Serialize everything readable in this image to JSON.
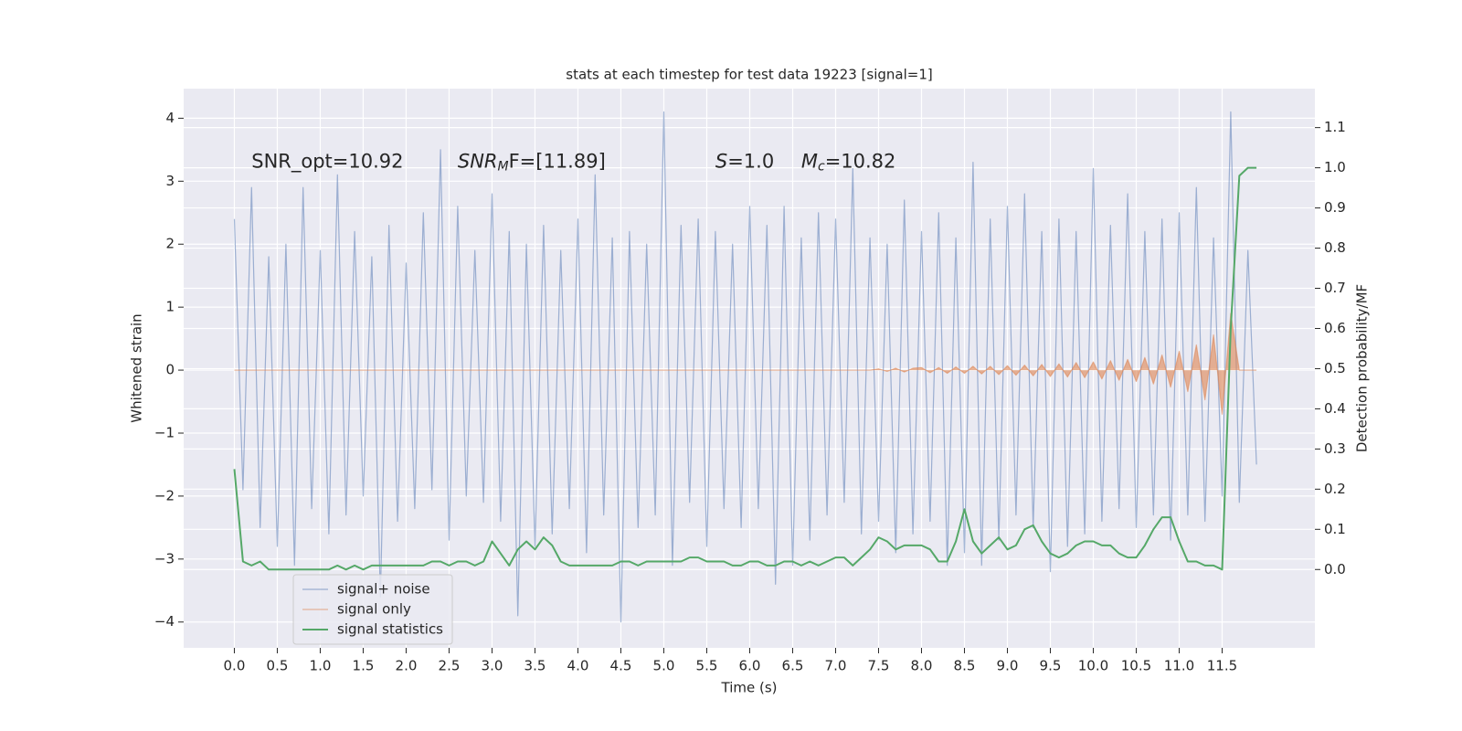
{
  "chart_data": {
    "type": "line",
    "title": "stats at each timestep for test data 19223 [signal=1]",
    "xlabel": "Time (s)",
    "ylabel": "Whitened strain",
    "y2label": "Detection probability/MF",
    "annotations": [
      {
        "text": "SNR_opt=10.92"
      },
      {
        "symbol": "SNR",
        "sub": "M",
        "rest": "F=[11.89]"
      },
      {
        "symbol": "S",
        "rest": "=1.0"
      },
      {
        "symbol": "M",
        "sub": "c",
        "rest": "=10.82"
      }
    ],
    "xlim": [
      -0.59,
      12.58
    ],
    "ylim": [
      -4.41,
      4.47
    ],
    "y2lim": [
      -0.195,
      1.197
    ],
    "xticks": [
      {
        "value": 0,
        "label": "0.0"
      },
      0.5,
      {
        "value": 1,
        "label": "1.0"
      },
      1.5,
      {
        "value": 2,
        "label": "2.0"
      },
      2.5,
      {
        "value": 3,
        "label": "3.0"
      },
      3.5,
      {
        "value": 4,
        "label": "4.0"
      },
      4.5,
      {
        "value": 5,
        "label": "5.0"
      },
      5.5,
      {
        "value": 6,
        "label": "6.0"
      },
      6.5,
      {
        "value": 7,
        "label": "7.0"
      },
      7.5,
      {
        "value": 8,
        "label": "8.0"
      },
      8.5,
      {
        "value": 9,
        "label": "9.0"
      },
      9.5,
      {
        "value": 10,
        "label": "10.0"
      },
      10.5,
      {
        "value": 11,
        "label": "11.0"
      },
      11.5
    ],
    "yticks": [
      {
        "value": -4,
        "label": "−4"
      },
      {
        "value": -3,
        "label": "−3"
      },
      {
        "value": -2,
        "label": "−2"
      },
      {
        "value": -1,
        "label": "−1"
      },
      0,
      1,
      2,
      3,
      4
    ],
    "y2ticks": [
      {
        "value": 0,
        "label": "0.0"
      },
      0.1,
      0.2,
      0.3,
      0.4,
      0.5,
      0.6,
      0.7,
      0.8,
      0.9,
      {
        "value": 1,
        "label": "1.0"
      },
      1.1
    ],
    "grid": true,
    "legend": "lower left",
    "x": [
      0,
      0.1,
      0.2,
      0.3,
      0.4,
      0.5,
      0.6,
      0.7,
      0.8,
      0.9,
      1,
      1.1,
      1.2,
      1.3,
      1.4,
      1.5,
      1.6,
      1.7,
      1.8,
      1.9,
      2,
      2.1,
      2.2,
      2.3,
      2.4,
      2.5,
      2.6,
      2.7,
      2.8,
      2.9,
      3,
      3.1,
      3.2,
      3.3,
      3.4,
      3.5,
      3.6,
      3.7,
      3.8,
      3.9,
      4,
      4.1,
      4.2,
      4.3,
      4.4,
      4.5,
      4.6,
      4.7,
      4.8,
      4.9,
      5,
      5.1,
      5.2,
      5.3,
      5.4,
      5.5,
      5.6,
      5.7,
      5.8,
      5.9,
      6,
      6.1,
      6.2,
      6.3,
      6.4,
      6.5,
      6.6,
      6.7,
      6.8,
      6.9,
      7,
      7.1,
      7.2,
      7.3,
      7.4,
      7.5,
      7.6,
      7.7,
      7.8,
      7.9,
      8,
      8.1,
      8.2,
      8.3,
      8.4,
      8.5,
      8.6,
      8.7,
      8.8,
      8.9,
      9,
      9.1,
      9.2,
      9.3,
      9.4,
      9.5,
      9.6,
      9.7,
      9.8,
      9.9,
      10,
      10.1,
      10.2,
      10.3,
      10.4,
      10.5,
      10.6,
      10.7,
      10.8,
      10.9,
      11,
      11.1,
      11.2,
      11.3,
      11.4,
      11.5,
      11.6,
      11.7,
      11.8,
      11.9
    ],
    "series": [
      {
        "name": "signal+ noise",
        "color": "#4c72b0",
        "values": [
          2.4,
          -1.9,
          2.9,
          -2.5,
          1.8,
          -2.8,
          2.0,
          -3.1,
          2.9,
          -2.2,
          1.9,
          -2.6,
          3.1,
          -2.3,
          2.2,
          -2.0,
          1.8,
          -3.6,
          2.3,
          -2.4,
          1.7,
          -2.2,
          2.5,
          -1.9,
          3.5,
          -2.7,
          2.6,
          -2.0,
          1.9,
          -2.1,
          2.8,
          -2.4,
          2.2,
          -3.9,
          2.0,
          -2.8,
          2.3,
          -2.6,
          1.9,
          -2.2,
          2.4,
          -2.9,
          3.1,
          -2.3,
          2.1,
          -4.0,
          2.2,
          -2.5,
          2.0,
          -2.3,
          4.1,
          -3.1,
          2.3,
          -2.1,
          2.4,
          -2.8,
          2.2,
          -2.2,
          2.0,
          -2.5,
          2.6,
          -2.2,
          2.3,
          -3.4,
          2.6,
          -3.1,
          2.1,
          -2.7,
          2.5,
          -2.3,
          2.4,
          -2.1,
          3.2,
          -2.6,
          2.1,
          -2.4,
          2.0,
          -2.9,
          2.7,
          -2.6,
          2.2,
          -2.4,
          2.5,
          -3.1,
          2.1,
          -2.9,
          3.3,
          -3.1,
          2.4,
          -2.7,
          2.6,
          -2.3,
          2.8,
          -2.5,
          2.2,
          -3.2,
          2.4,
          -2.8,
          2.2,
          -2.6,
          3.2,
          -2.4,
          2.3,
          -2.2,
          2.8,
          -2.5,
          2.2,
          -2.3,
          2.4,
          -2.7,
          2.5,
          -2.3,
          2.9,
          -2.4,
          2.1,
          -2.0,
          4.1,
          -2.1,
          1.9,
          -1.5
        ]
      },
      {
        "name": "signal only",
        "color": "#dd8452",
        "values": [
          0,
          0,
          0,
          0,
          0,
          0,
          0,
          0,
          0,
          0,
          0,
          0,
          0,
          0,
          0,
          0,
          0,
          0,
          0,
          0,
          0,
          0,
          0,
          0,
          0,
          0,
          0,
          0,
          0,
          0,
          0,
          0,
          0,
          0,
          0,
          0,
          0,
          0,
          0,
          0,
          0,
          0,
          0,
          0,
          0,
          0,
          0,
          0,
          0,
          0,
          0,
          0,
          0,
          0,
          0,
          0,
          0,
          0,
          0,
          0,
          0,
          0,
          0,
          0,
          0,
          0,
          0,
          0,
          0,
          0,
          0,
          0,
          0,
          0,
          0,
          0.02,
          -0.02,
          0.03,
          -0.03,
          0.03,
          0.04,
          -0.04,
          0.04,
          -0.05,
          0.05,
          -0.05,
          0.06,
          -0.06,
          0.06,
          -0.07,
          0.07,
          -0.08,
          0.08,
          -0.09,
          0.09,
          -0.1,
          0.1,
          -0.11,
          0.12,
          -0.12,
          0.13,
          -0.14,
          0.15,
          -0.16,
          0.17,
          -0.18,
          0.2,
          -0.22,
          0.24,
          -0.27,
          0.3,
          -0.34,
          0.4,
          -0.47,
          0.56,
          -0.7,
          0.9,
          0,
          0,
          0
        ]
      },
      {
        "name": "signal statistics",
        "color": "#55a868",
        "axis": "y2",
        "values": [
          0.25,
          0.02,
          0.01,
          0.02,
          0.0,
          0.0,
          0.0,
          0.0,
          0.0,
          0.0,
          0.0,
          0.0,
          0.01,
          0.0,
          0.01,
          0.0,
          0.01,
          0.01,
          0.01,
          0.01,
          0.01,
          0.01,
          0.01,
          0.02,
          0.02,
          0.01,
          0.02,
          0.02,
          0.01,
          0.02,
          0.07,
          0.04,
          0.01,
          0.05,
          0.07,
          0.05,
          0.08,
          0.06,
          0.02,
          0.01,
          0.01,
          0.01,
          0.01,
          0.01,
          0.01,
          0.02,
          0.02,
          0.01,
          0.02,
          0.02,
          0.02,
          0.02,
          0.02,
          0.03,
          0.03,
          0.02,
          0.02,
          0.02,
          0.01,
          0.01,
          0.02,
          0.02,
          0.01,
          0.01,
          0.02,
          0.02,
          0.01,
          0.02,
          0.01,
          0.02,
          0.03,
          0.03,
          0.01,
          0.03,
          0.05,
          0.08,
          0.07,
          0.05,
          0.06,
          0.06,
          0.06,
          0.05,
          0.02,
          0.02,
          0.07,
          0.15,
          0.07,
          0.04,
          0.06,
          0.08,
          0.05,
          0.06,
          0.1,
          0.11,
          0.07,
          0.04,
          0.03,
          0.04,
          0.06,
          0.07,
          0.07,
          0.06,
          0.06,
          0.04,
          0.03,
          0.03,
          0.06,
          0.1,
          0.13,
          0.13,
          0.07,
          0.02,
          0.02,
          0.01,
          0.01,
          0.0,
          0.6,
          0.98,
          1.0,
          1.0
        ]
      }
    ]
  }
}
